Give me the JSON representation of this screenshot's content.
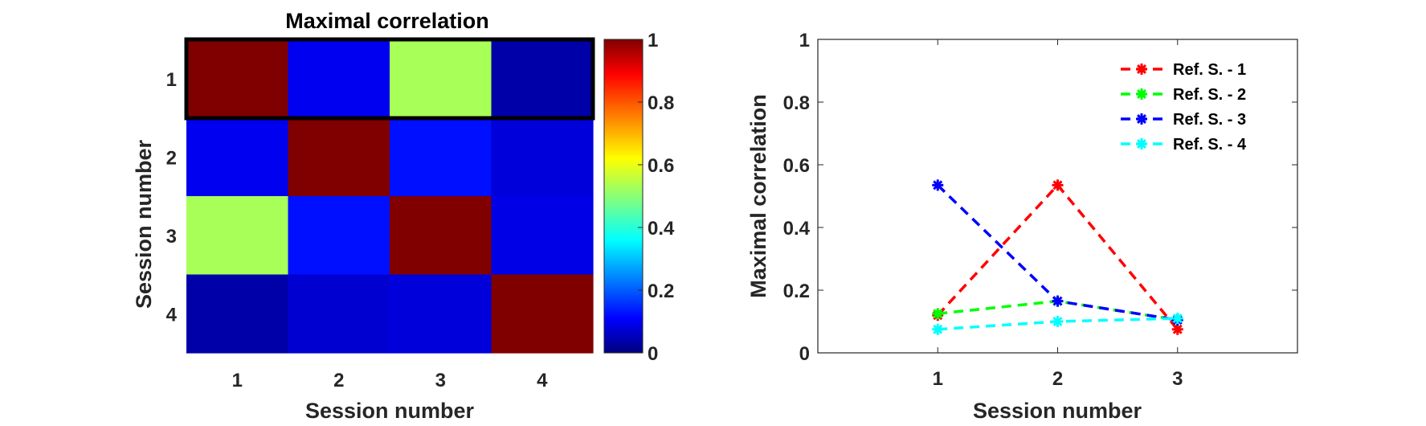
{
  "chart_data": [
    {
      "type": "heatmap",
      "title": "Maximal correlation",
      "xlabel": "Session number",
      "ylabel": "Session number",
      "x_categories": [
        "1",
        "2",
        "3",
        "4"
      ],
      "y_categories": [
        "1",
        "2",
        "3",
        "4"
      ],
      "values": [
        [
          1.0,
          0.11,
          0.54,
          0.04
        ],
        [
          0.11,
          1.0,
          0.14,
          0.09
        ],
        [
          0.54,
          0.14,
          1.0,
          0.1
        ],
        [
          0.04,
          0.08,
          0.09,
          1.0
        ]
      ],
      "highlighted_row": "1",
      "colorbar": {
        "colormap": "jet",
        "range": [
          0,
          1
        ],
        "ticks": [
          "0",
          "0.2",
          "0.4",
          "0.6",
          "0.8",
          "1"
        ]
      }
    },
    {
      "type": "line",
      "title": "",
      "xlabel": "Session number",
      "ylabel": "Maximal correlation",
      "xlim": [
        0,
        4
      ],
      "ylim": [
        0,
        1
      ],
      "xticks": [
        "1",
        "2",
        "3"
      ],
      "yticks": [
        "0",
        "0.2",
        "0.4",
        "0.6",
        "0.8",
        "1"
      ],
      "legend_position": "top-right",
      "x": [
        1,
        2,
        3
      ],
      "series": [
        {
          "name": "Ref. S. - 1",
          "color": "#ff0000",
          "values": [
            0.12,
            0.535,
            0.075
          ]
        },
        {
          "name": "Ref. S. - 2",
          "color": "#00ff00",
          "values": [
            0.125,
            0.165,
            0.105
          ]
        },
        {
          "name": "Ref. S. - 3",
          "color": "#0000ff",
          "values": [
            0.535,
            0.165,
            0.105
          ]
        },
        {
          "name": "Ref. S. - 4",
          "color": "#00ffff",
          "values": [
            0.075,
            0.1,
            0.11
          ]
        }
      ]
    }
  ]
}
